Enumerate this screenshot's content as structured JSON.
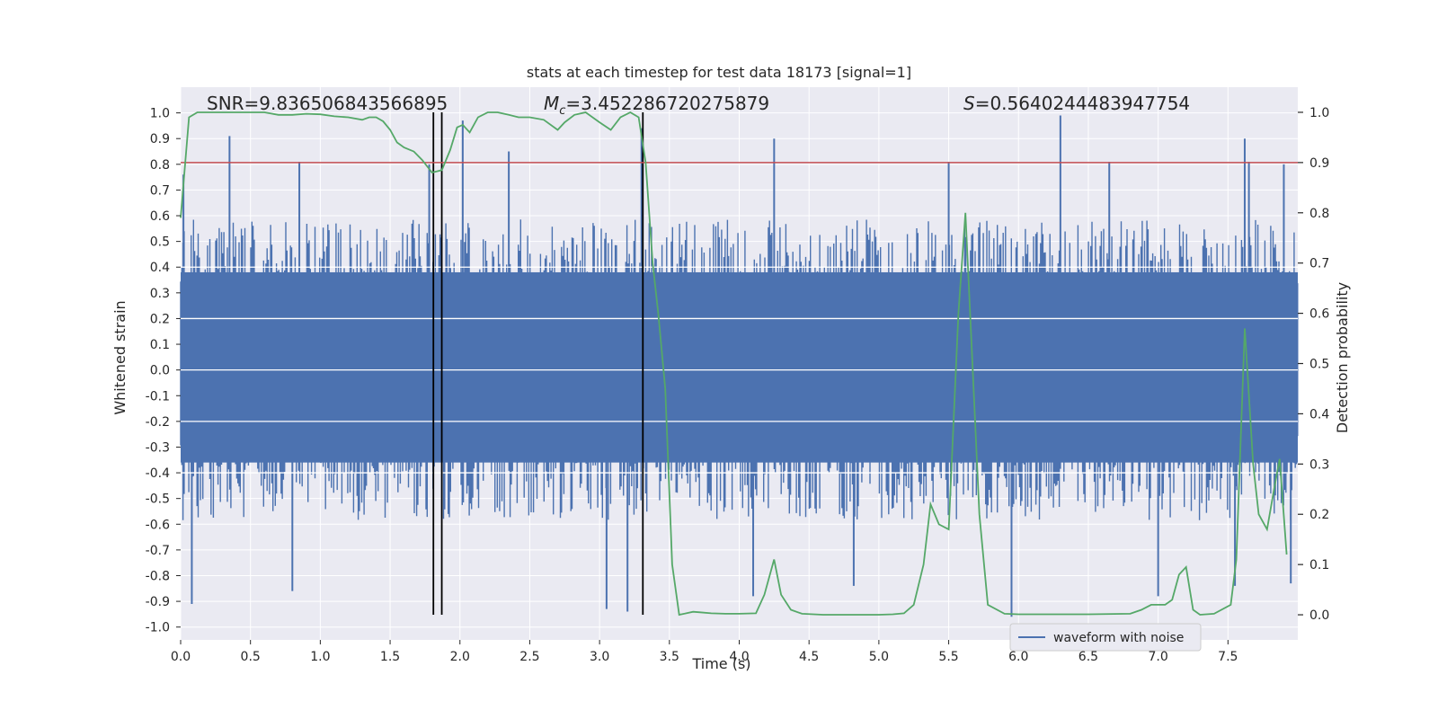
{
  "chart_data": {
    "type": "line",
    "title": "stats at each timestep for test data 18173 [signal=1]",
    "xlabel": "Time (s)",
    "ylabel": "Whitened strain",
    "ylabel_right": "Detection probability",
    "xlim": [
      0,
      8
    ],
    "ylim": [
      -1.05,
      1.1
    ],
    "ylim_right": [
      -0.05,
      1.05
    ],
    "xticks": [
      "0.0",
      "0.5",
      "1.0",
      "1.5",
      "2.0",
      "2.5",
      "3.0",
      "3.5",
      "4.0",
      "4.5",
      "5.0",
      "5.5",
      "6.0",
      "6.5",
      "7.0",
      "7.5"
    ],
    "yticks_left": [
      "-1.0",
      "-0.9",
      "-0.8",
      "-0.7",
      "-0.6",
      "-0.5",
      "-0.4",
      "-0.3",
      "-0.2",
      "-0.1",
      "0.0",
      "0.1",
      "0.2",
      "0.3",
      "0.4",
      "0.5",
      "0.6",
      "0.7",
      "0.8",
      "0.9",
      "1.0"
    ],
    "yticks_right": [
      "0.0",
      "0.1",
      "0.2",
      "0.3",
      "0.4",
      "0.5",
      "0.6",
      "0.7",
      "0.8",
      "0.9",
      "1.0"
    ],
    "annotations": {
      "snr": "SNR=9.836506843566895",
      "mc": "=3.452286720275879",
      "mc_symbol": "M",
      "mc_sub": "c",
      "s": "=0.5640244483947754",
      "s_symbol": "S"
    },
    "legend": {
      "label": "waveform with noise",
      "location": "lower-right"
    },
    "grid": true,
    "colors": {
      "background": "#eaeaf2",
      "grid": "#ffffff",
      "waveform": "#4c72b0",
      "probability": "#55a868",
      "threshold": "#c44e52",
      "vlines": "#000000"
    },
    "threshold": 0.9,
    "vlines": [
      1.81,
      1.87,
      3.31
    ],
    "waveform": {
      "name": "waveform with noise",
      "x_range": [
        0,
        8
      ],
      "envelope_typical": 0.45,
      "notable_peaks": [
        {
          "x": 0.02,
          "y": 0.76
        },
        {
          "x": 0.35,
          "y": 0.91
        },
        {
          "x": 0.85,
          "y": 0.81
        },
        {
          "x": 1.78,
          "y": 0.8
        },
        {
          "x": 2.02,
          "y": 0.97
        },
        {
          "x": 2.35,
          "y": 0.85
        },
        {
          "x": 3.3,
          "y": 0.94
        },
        {
          "x": 4.25,
          "y": 0.9
        },
        {
          "x": 5.5,
          "y": 0.81
        },
        {
          "x": 6.3,
          "y": 0.99
        },
        {
          "x": 6.65,
          "y": 0.81
        },
        {
          "x": 7.62,
          "y": 0.9
        },
        {
          "x": 7.65,
          "y": 0.81
        },
        {
          "x": 7.9,
          "y": 0.8
        },
        {
          "x": 0.08,
          "y": -0.91
        },
        {
          "x": 0.8,
          "y": -0.86
        },
        {
          "x": 3.05,
          "y": -0.93
        },
        {
          "x": 3.2,
          "y": -0.94
        },
        {
          "x": 4.1,
          "y": -0.88
        },
        {
          "x": 4.82,
          "y": -0.84
        },
        {
          "x": 5.95,
          "y": -0.96
        },
        {
          "x": 7.0,
          "y": -0.88
        },
        {
          "x": 7.55,
          "y": -0.84
        },
        {
          "x": 7.95,
          "y": -0.83
        }
      ]
    },
    "series": [
      {
        "name": "Detection probability",
        "axis": "right",
        "x": [
          0.0,
          0.06,
          0.12,
          0.2,
          0.3,
          0.4,
          0.5,
          0.6,
          0.7,
          0.8,
          0.9,
          1.0,
          1.1,
          1.2,
          1.3,
          1.35,
          1.4,
          1.45,
          1.5,
          1.55,
          1.6,
          1.67,
          1.73,
          1.8,
          1.87,
          1.93,
          1.98,
          2.02,
          2.07,
          2.13,
          2.2,
          2.27,
          2.35,
          2.42,
          2.5,
          2.6,
          2.7,
          2.75,
          2.82,
          2.9,
          3.0,
          3.08,
          3.15,
          3.22,
          3.28,
          3.33,
          3.38,
          3.42,
          3.47,
          3.52,
          3.57,
          3.62,
          3.67,
          3.72,
          3.8,
          3.9,
          4.0,
          4.12,
          4.18,
          4.25,
          4.3,
          4.37,
          4.45,
          4.6,
          4.8,
          5.0,
          5.1,
          5.18,
          5.25,
          5.32,
          5.37,
          5.43,
          5.5,
          5.57,
          5.62,
          5.67,
          5.72,
          5.78,
          5.9,
          6.0,
          6.2,
          6.5,
          6.8,
          6.88,
          6.95,
          7.05,
          7.1,
          7.15,
          7.2,
          7.25,
          7.3,
          7.4,
          7.52,
          7.56,
          7.62,
          7.68,
          7.72,
          7.78,
          7.83,
          7.87,
          7.92
        ],
        "values": [
          0.79,
          0.99,
          1.0,
          1.0,
          1.0,
          1.0,
          1.0,
          1.0,
          0.995,
          0.995,
          0.997,
          0.996,
          0.992,
          0.99,
          0.985,
          0.99,
          0.99,
          0.982,
          0.965,
          0.94,
          0.93,
          0.922,
          0.905,
          0.88,
          0.885,
          0.925,
          0.97,
          0.975,
          0.96,
          0.99,
          1.0,
          1.0,
          0.995,
          0.99,
          0.99,
          0.985,
          0.965,
          0.98,
          0.995,
          1.0,
          0.98,
          0.965,
          0.99,
          1.0,
          0.99,
          0.9,
          0.7,
          0.6,
          0.45,
          0.1,
          0.0,
          0.003,
          0.006,
          0.005,
          0.003,
          0.002,
          0.002,
          0.003,
          0.04,
          0.11,
          0.04,
          0.01,
          0.002,
          0.0,
          0.0,
          0.0,
          0.001,
          0.003,
          0.02,
          0.1,
          0.22,
          0.18,
          0.17,
          0.6,
          0.8,
          0.5,
          0.2,
          0.02,
          0.002,
          0.001,
          0.001,
          0.001,
          0.002,
          0.01,
          0.02,
          0.02,
          0.03,
          0.08,
          0.095,
          0.01,
          0.0,
          0.002,
          0.02,
          0.11,
          0.57,
          0.3,
          0.2,
          0.17,
          0.25,
          0.31,
          0.12
        ]
      }
    ]
  }
}
